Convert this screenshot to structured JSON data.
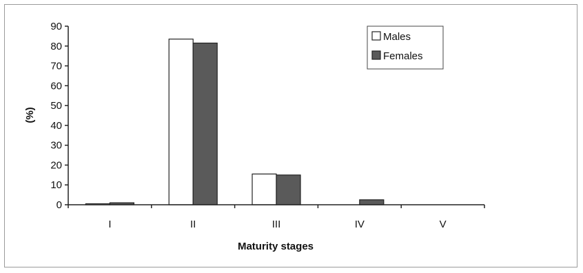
{
  "chart_data": {
    "type": "bar",
    "categories": [
      "I",
      "II",
      "III",
      "IV",
      "V"
    ],
    "series": [
      {
        "name": "Males",
        "values": [
          0.5,
          83.5,
          15.5,
          0,
          0
        ],
        "color": "#ffffff"
      },
      {
        "name": "Females",
        "values": [
          1,
          81.5,
          15,
          2.5,
          0
        ],
        "color": "#5a5a5a"
      }
    ],
    "xlabel": "Maturity stages",
    "ylabel": "(%)",
    "ylim": [
      0,
      90
    ],
    "yticks": [
      0,
      10,
      20,
      30,
      40,
      50,
      60,
      70,
      80,
      90
    ],
    "grid": false,
    "legend_position": "top-right"
  }
}
